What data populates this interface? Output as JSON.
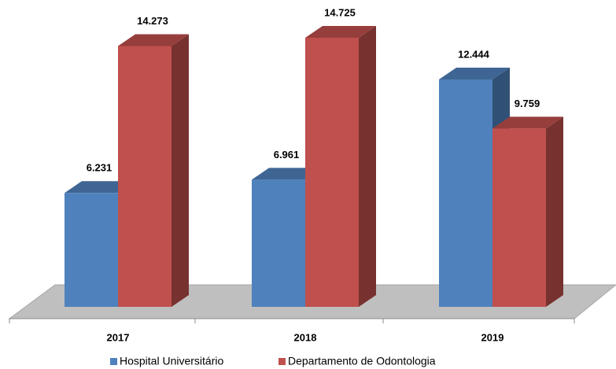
{
  "chart_data": {
    "type": "bar3d",
    "categories": [
      "2017",
      "2018",
      "2019"
    ],
    "series": [
      {
        "name": "Hospital Universitário",
        "color": "#4f81bd",
        "values": [
          6231,
          6961,
          12444
        ],
        "value_labels": [
          "6.231",
          "6.961",
          "12.444"
        ]
      },
      {
        "name": "Departamento de Odontologia",
        "color": "#c0504d",
        "values": [
          14273,
          14725,
          9759
        ],
        "value_labels": [
          "14.273",
          "14.725",
          "9.759"
        ]
      }
    ]
  }
}
